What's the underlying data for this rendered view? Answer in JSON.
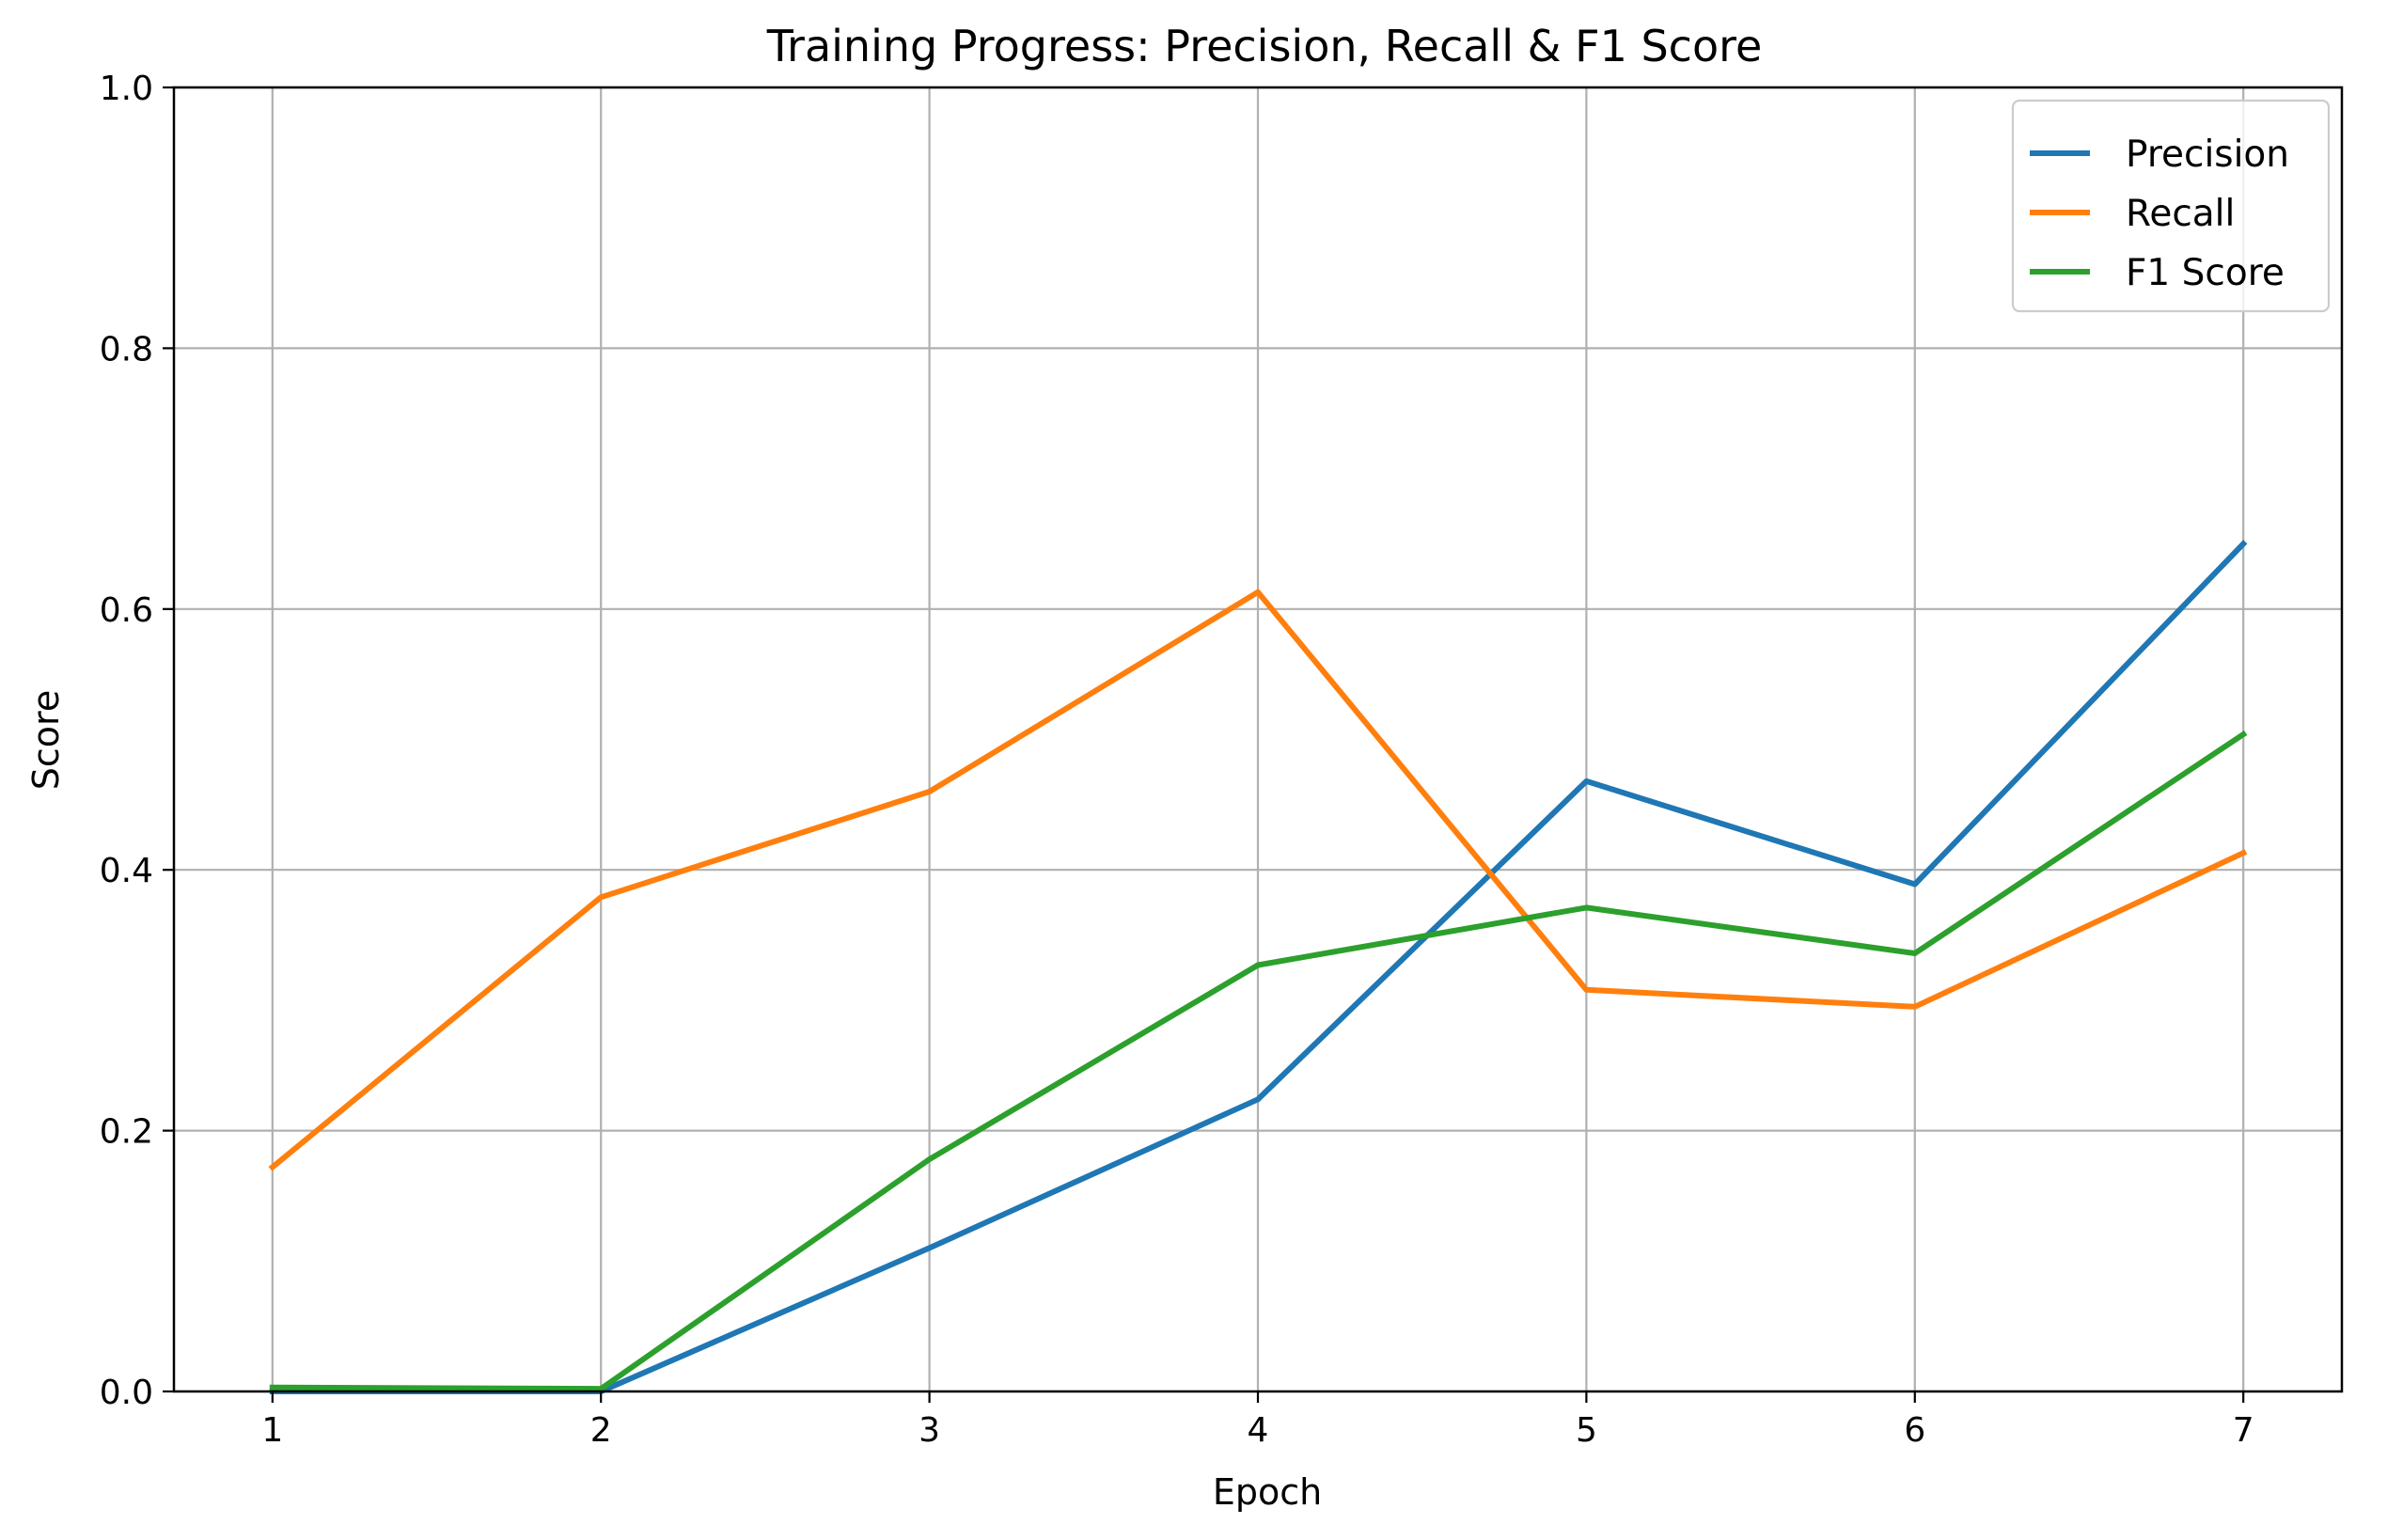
{
  "chart_data": {
    "type": "line",
    "title": "Training Progress: Precision, Recall & F1 Score",
    "xlabel": "Epoch",
    "ylabel": "Score",
    "x": [
      1,
      2,
      3,
      4,
      5,
      6,
      7
    ],
    "xlim": [
      0.7,
      7.3
    ],
    "ylim": [
      0.0,
      1.0
    ],
    "x_ticks": [
      "1",
      "2",
      "3",
      "4",
      "5",
      "6",
      "7"
    ],
    "y_ticks": [
      "0.0",
      "0.2",
      "0.4",
      "0.6",
      "0.8",
      "1.0"
    ],
    "grid": true,
    "legend_position": "top-right",
    "series": [
      {
        "name": "Precision",
        "color": "#1f77b4",
        "values": [
          0.0,
          0.0,
          0.11,
          0.224,
          0.468,
          0.389,
          0.65
        ]
      },
      {
        "name": "Recall",
        "color": "#ff7f0e",
        "values": [
          0.172,
          0.379,
          0.46,
          0.613,
          0.308,
          0.295,
          0.413
        ]
      },
      {
        "name": "F1 Score",
        "color": "#2ca02c",
        "values": [
          0.003,
          0.002,
          0.178,
          0.327,
          0.371,
          0.336,
          0.504
        ]
      }
    ]
  }
}
